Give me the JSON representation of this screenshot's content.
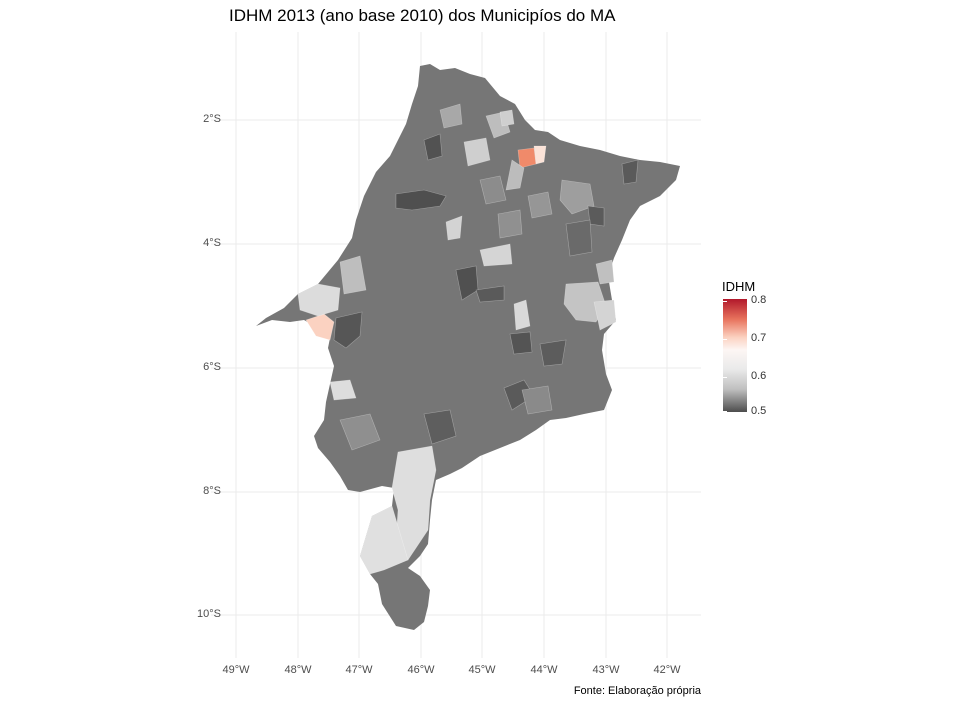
{
  "title": "IDHM 2013 (ano base 2010) dos Municipíos do MA",
  "caption": "Fonte: Elaboração própria",
  "axes": {
    "x_ticks": [
      "49°W",
      "48°W",
      "47°W",
      "46°W",
      "45°W",
      "44°W",
      "43°W",
      "42°W"
    ],
    "y_ticks": [
      "2°S",
      "4°S",
      "6°S",
      "8°S",
      "10°S"
    ]
  },
  "legend": {
    "title": "IDHM",
    "ticks": [
      "0.8",
      "0.7",
      "0.6",
      "0.5"
    ],
    "scale": "diverging red–white–gray",
    "colors": {
      "high": "#b2182b",
      "mid": "#fdf6f4",
      "low": "#4d4d4d"
    }
  },
  "map": {
    "region": "Maranhão",
    "base_color": "#7a7a7a",
    "highlight_colors": [
      "#f08a6a",
      "#fbd2c1",
      "#e3e3e3",
      "#bdbdbd",
      "#555555"
    ]
  }
}
